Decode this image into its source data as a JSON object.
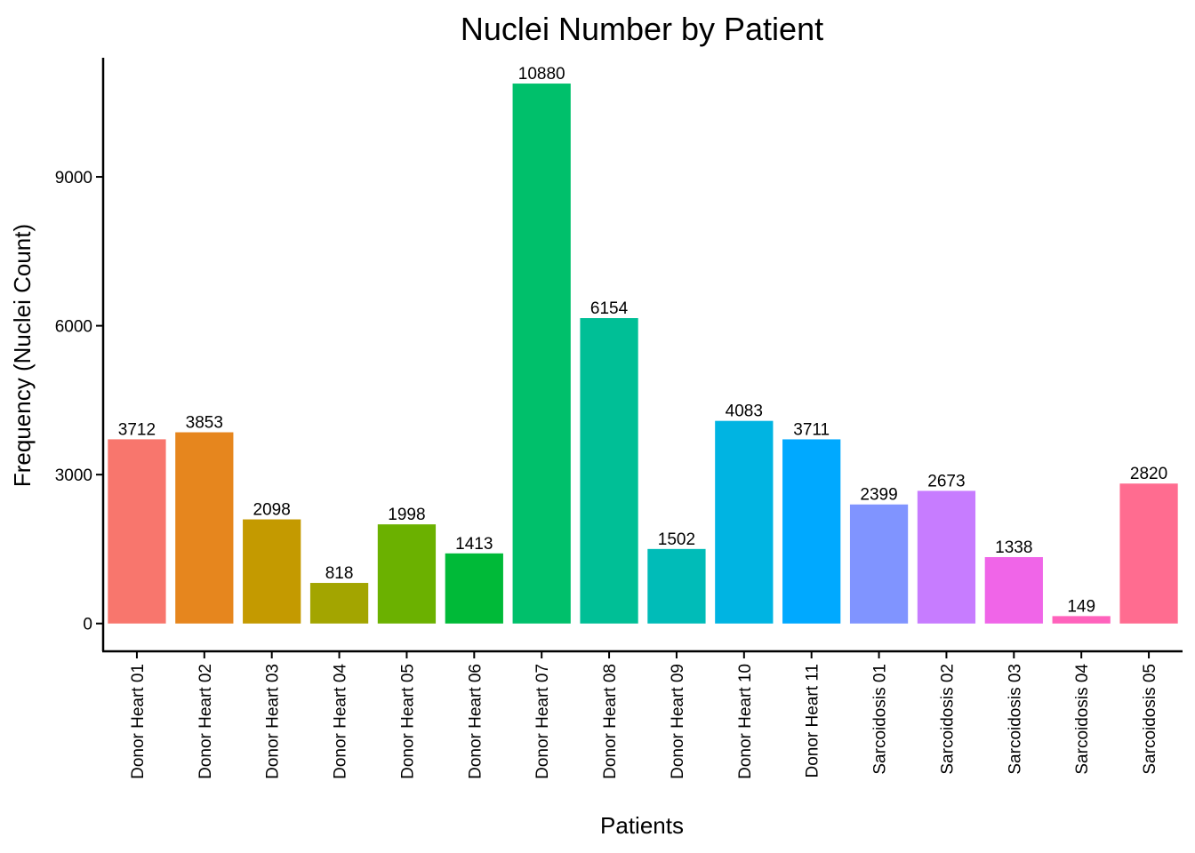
{
  "chart_data": {
    "type": "bar",
    "title": "Nuclei Number by Patient",
    "xlabel": "Patients",
    "ylabel": "Frequency (Nuclei Count)",
    "ylim": [
      -560,
      11400
    ],
    "yticks": [
      0,
      3000,
      6000,
      9000
    ],
    "yticks_labels": [
      "0",
      "3000",
      "6000",
      "9000"
    ],
    "categories": [
      "Donor Heart 01",
      "Donor Heart 02",
      "Donor Heart 03",
      "Donor Heart 04",
      "Donor Heart 05",
      "Donor Heart 06",
      "Donor Heart 07",
      "Donor Heart 08",
      "Donor Heart 09",
      "Donor Heart 10",
      "Donor Heart 11",
      "Sarcoidosis 01",
      "Sarcoidosis 02",
      "Sarcoidosis 03",
      "Sarcoidosis 04",
      "Sarcoidosis 05"
    ],
    "values": [
      3712,
      3853,
      2098,
      818,
      1998,
      1413,
      10880,
      6154,
      1502,
      4083,
      3711,
      2399,
      2673,
      1338,
      149,
      2820
    ],
    "value_labels": [
      "3712",
      "3853",
      "2098",
      "818",
      "1998",
      "1413",
      "10880",
      "6154",
      "1502",
      "4083",
      "3711",
      "2399",
      "2673",
      "1338",
      "149",
      "2820"
    ],
    "colors": [
      "#F8766D",
      "#E6861E",
      "#C49A00",
      "#A3A500",
      "#6BB100",
      "#00BA38",
      "#00C06B",
      "#00BF96",
      "#00BCB8",
      "#00B4E2",
      "#00A9FF",
      "#8094FF",
      "#C77CFF",
      "#F065E8",
      "#FF62BC",
      "#FF6C90"
    ],
    "grid": false,
    "legend": "none"
  }
}
